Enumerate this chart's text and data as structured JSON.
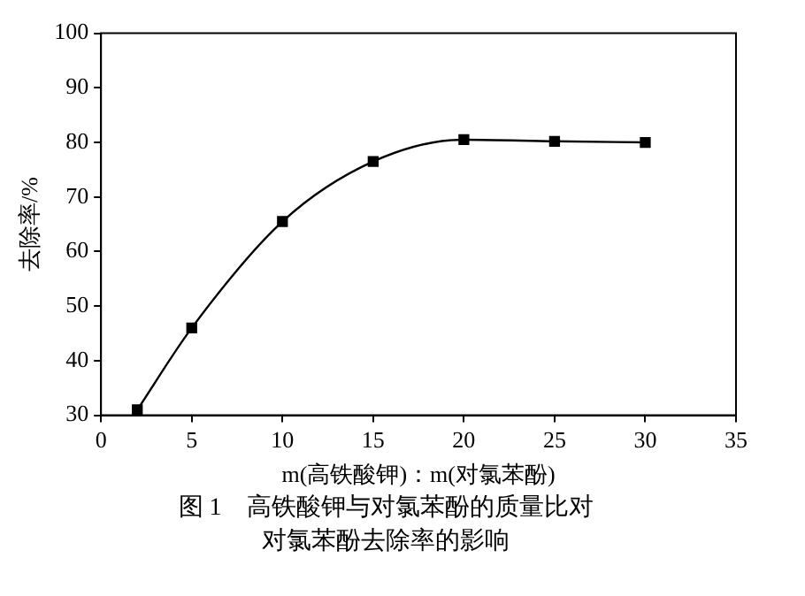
{
  "chart_data": {
    "type": "line",
    "title": "图 1　高铁酸钾与对氯苯酚的质量比对",
    "subtitle": "对氯苯酚去除率的影响",
    "xlabel": "m(高铁酸钾)：m(对氯苯酚)",
    "ylabel": "去除率/%",
    "series": [
      {
        "color": "#000000",
        "x": [
          2,
          5,
          10,
          15,
          20,
          25,
          30
        ],
        "values": [
          31,
          46,
          65.5,
          76.5,
          80.5,
          80.2,
          80
        ]
      }
    ],
    "xlim": [
      0,
      35
    ],
    "xticks": [
      0,
      5,
      10,
      15,
      20,
      25,
      30,
      35
    ],
    "ylim": [
      30,
      100
    ],
    "yticks": [
      30,
      40,
      50,
      60,
      70,
      80,
      90,
      100
    ],
    "grid": false,
    "legend": false,
    "marker": "square",
    "line_style": "solid"
  }
}
